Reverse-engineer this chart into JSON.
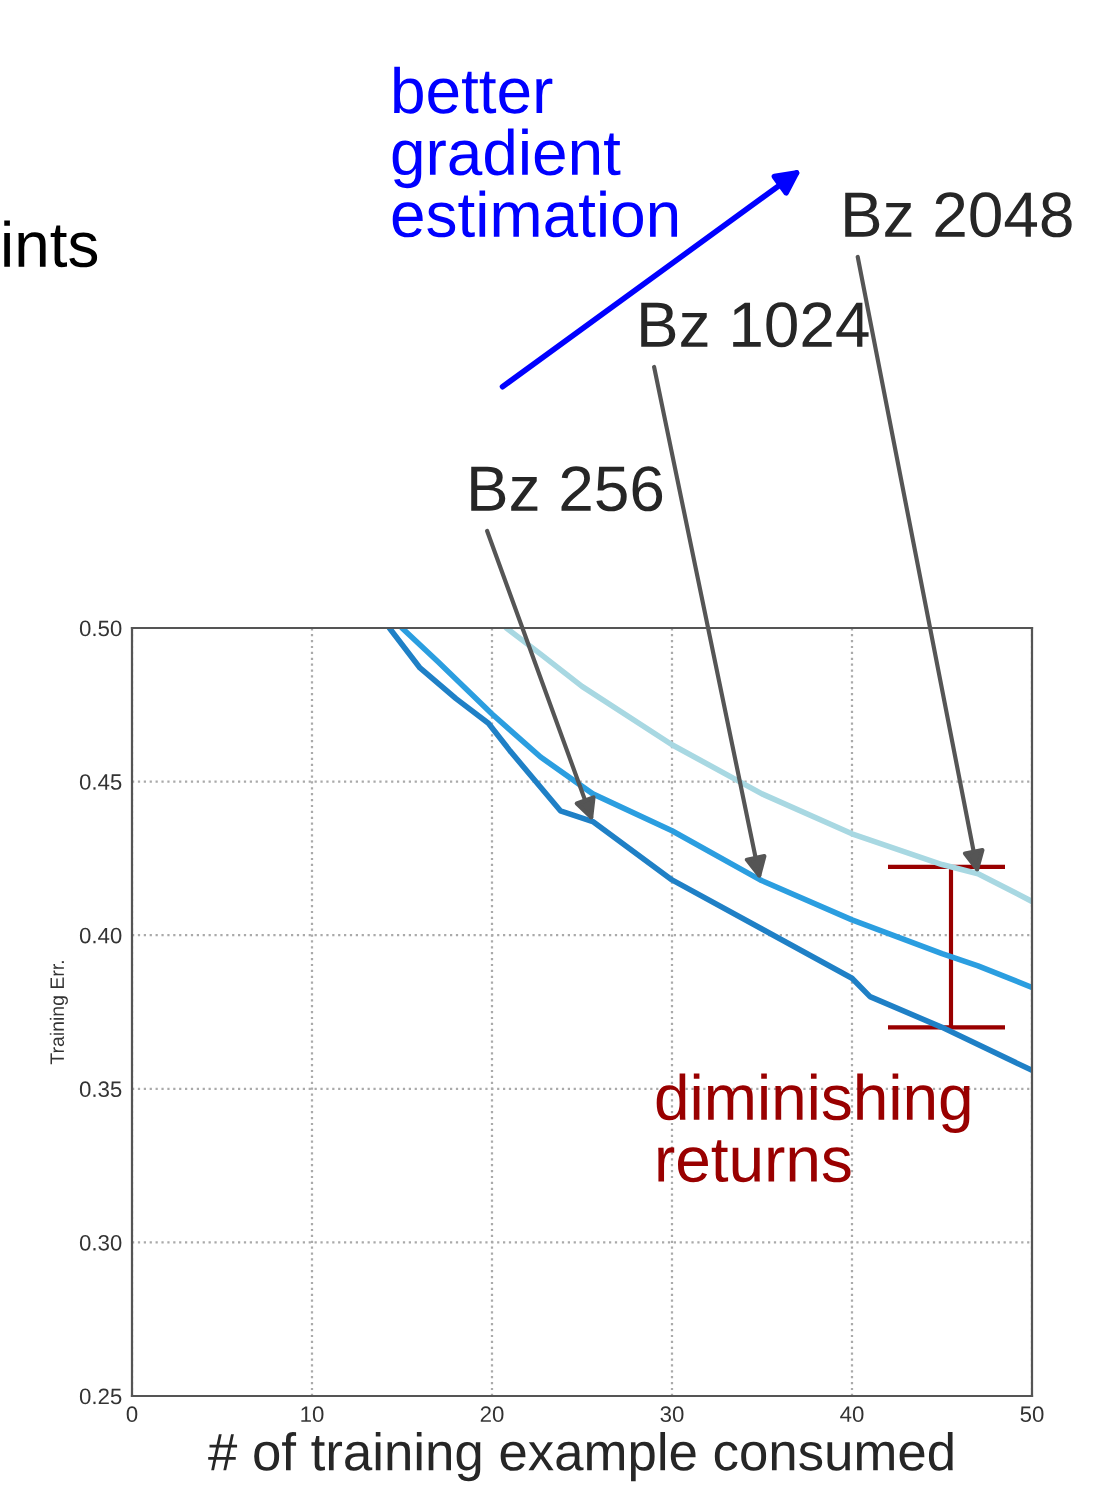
{
  "chart_data": {
    "type": "line",
    "xlabel": "# of training example consumed",
    "ylabel": "Training Err.",
    "xlim": [
      0,
      50
    ],
    "ylim": [
      0.25,
      0.5
    ],
    "xticks": [
      0,
      10,
      20,
      30,
      40,
      50
    ],
    "yticks": [
      0.25,
      {
        "value": 0.3,
        "label": "0.30"
      },
      0.35,
      {
        "value": 0.4,
        "label": "0.40"
      },
      0.45,
      {
        "value": 0.5,
        "label": "0.50"
      }
    ],
    "grid": true,
    "series": [
      {
        "color": "#a8d8e2",
        "x": [
          20.8,
          22.7,
          25,
          30,
          35,
          40,
          45,
          47,
          50
        ],
        "values": [
          0.5,
          0.4915,
          0.481,
          0.462,
          0.446,
          0.433,
          0.423,
          0.42,
          0.411
        ]
      },
      {
        "color": "#2b9ee0",
        "x": [
          15,
          17,
          20,
          22.7,
          25.6,
          30,
          34.9,
          40,
          45,
          47,
          50
        ],
        "values": [
          0.5,
          0.489,
          0.472,
          0.458,
          0.446,
          0.434,
          0.418,
          0.405,
          0.394,
          0.39,
          0.383
        ]
      },
      {
        "color": "#1f80c6",
        "x": [
          14.3,
          16,
          18,
          19.8,
          21,
          23.8,
          25.6,
          30,
          35,
          40,
          41,
          45,
          50
        ],
        "values": [
          0.5,
          0.487,
          0.477,
          0.469,
          0.46,
          0.4405,
          0.437,
          0.418,
          0.402,
          0.386,
          0.38,
          0.37,
          0.356
        ]
      }
    ],
    "annotations": [
      "ints",
      "better gradient estimation",
      {
        "text": "Bz 256",
        "x": 25.6,
        "y": 0.437
      },
      {
        "text": "Bz 1024",
        "x": 34.9,
        "y": 0.418
      },
      {
        "text": "Bz 2048",
        "x": 47,
        "y": 0.42
      },
      {
        "text": "diminishing returns",
        "x": 45.5,
        "y": 0.37
      }
    ]
  }
}
